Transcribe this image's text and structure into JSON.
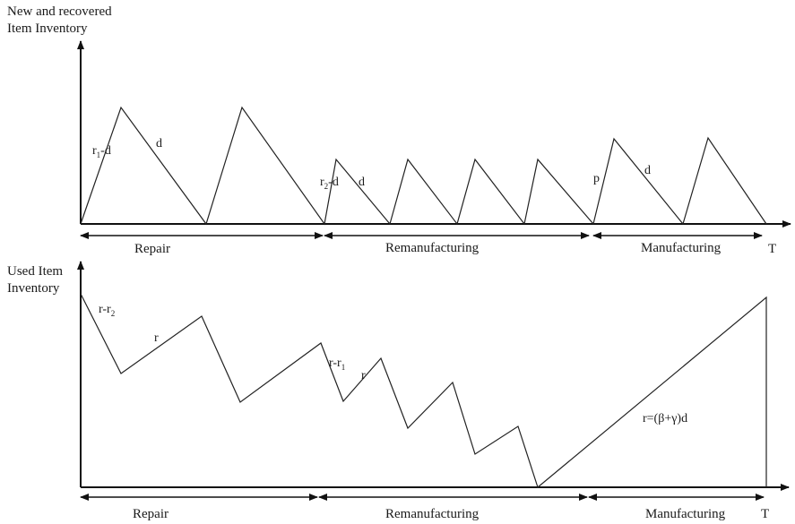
{
  "top_chart": {
    "y_axis_title_line1": "New and recovered",
    "y_axis_title_line2": "Item Inventory",
    "phases": [
      "Repair",
      "Remanufacturing",
      "Manufacturing"
    ],
    "end_label": "T",
    "rate_labels": {
      "repair_up": "r",
      "repair_up_sub": "1",
      "repair_up_suffix": "-d",
      "repair_down": "d",
      "reman_up": "r",
      "reman_up_sub": "2",
      "reman_up_suffix": "-d",
      "reman_down": "d",
      "manuf_up": "p",
      "manuf_down": "d"
    }
  },
  "bottom_chart": {
    "y_axis_title_line1": "Used Item",
    "y_axis_title_line2": "Inventory",
    "phases": [
      "Repair",
      "Remanufacturing",
      "Manufacturing"
    ],
    "end_label": "T",
    "rate_labels": {
      "repair_down": "r-r",
      "repair_down_sub": "2",
      "repair_up": "r",
      "reman_down": "r-r",
      "reman_down_sub": "1",
      "reman_up": "r",
      "manuf_up": "r=(β+γ)d"
    }
  }
}
